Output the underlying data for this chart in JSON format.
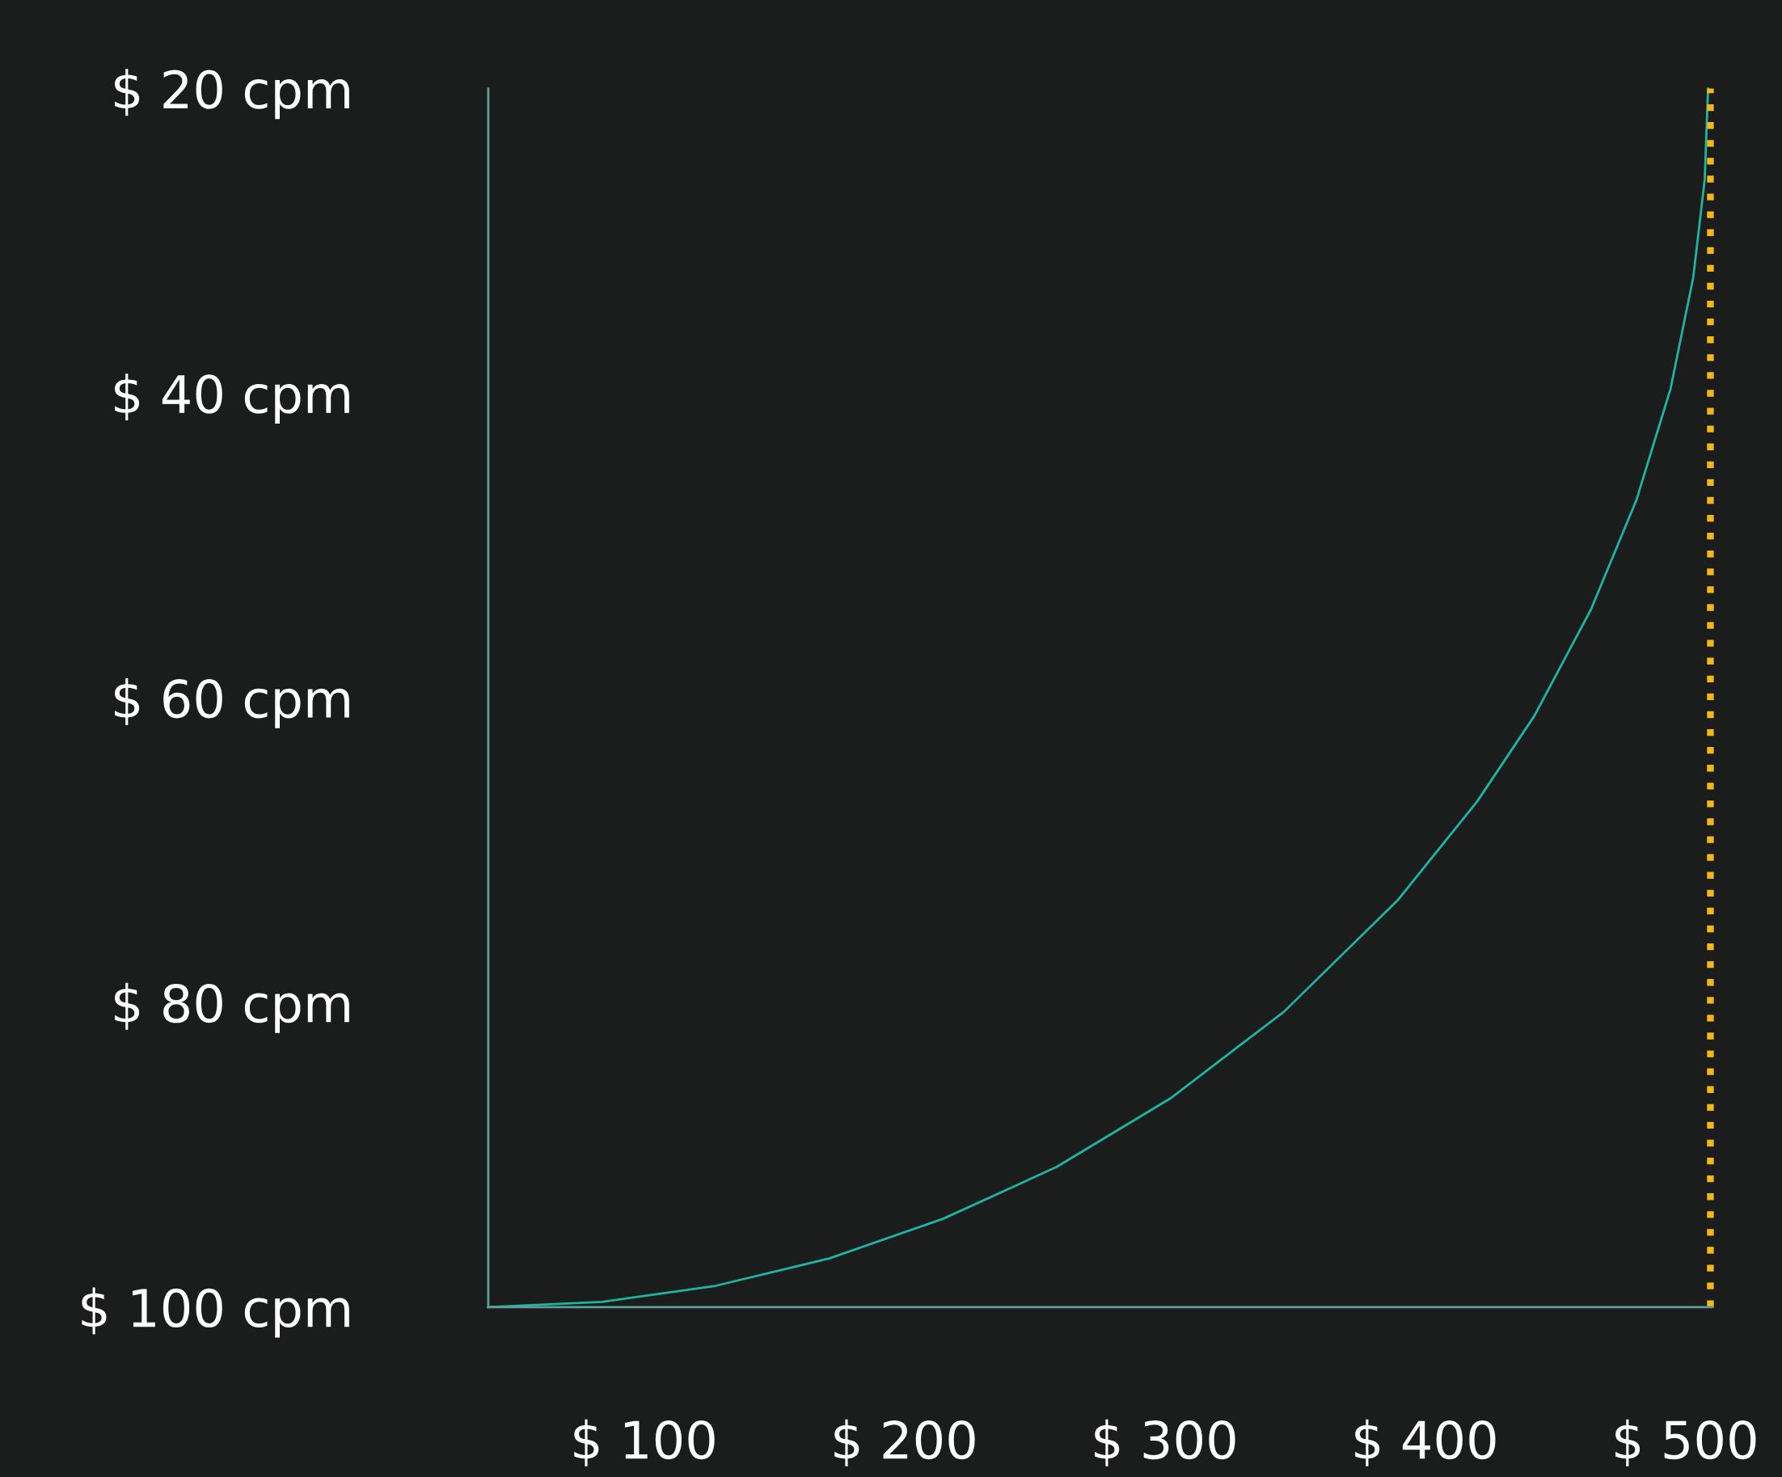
{
  "chart_data": {
    "type": "line",
    "x": [
      40.2,
      83.9,
      127.5,
      171.2,
      214.9,
      258.5,
      302.2,
      345.9,
      389.5,
      420.1,
      442.0,
      463.8,
      481.3,
      494.4,
      503.1,
      507.5,
      508.8
    ],
    "series": [
      {
        "color": "#1fb5a5",
        "values": [
          100,
          99.65,
          98.6,
          96.8,
          94.2,
          90.8,
          86.3,
          80.6,
          73.3,
          66.8,
          61.2,
          54.2,
          47.0,
          39.7,
          32.4,
          26.0,
          20
        ]
      }
    ],
    "xlim": [
      40.2,
      510.5
    ],
    "xticks": [
      {
        "value": 100,
        "label": "$ 100"
      },
      {
        "value": 200,
        "label": "$ 200"
      },
      {
        "value": 300,
        "label": "$ 300"
      },
      {
        "value": 400,
        "label": "$ 400"
      },
      {
        "value": 500,
        "label": "$ 500"
      }
    ],
    "ylim": [
      100,
      20
    ],
    "yticks": [
      {
        "value": 20,
        "label": "$ 20 cpm"
      },
      {
        "value": 40,
        "label": "$ 40 cpm"
      },
      {
        "value": 60,
        "label": "$ 60 cpm"
      },
      {
        "value": 80,
        "label": "$ 80 cpm"
      },
      {
        "value": 100,
        "label": "$ 100 cpm"
      }
    ],
    "ref_lines": [
      {
        "axis": "x",
        "value": 509.7,
        "color": "#f5b915",
        "line_style": "dotted"
      }
    ],
    "grid": false,
    "legend": false,
    "marker": "none",
    "line_style": "solid"
  }
}
